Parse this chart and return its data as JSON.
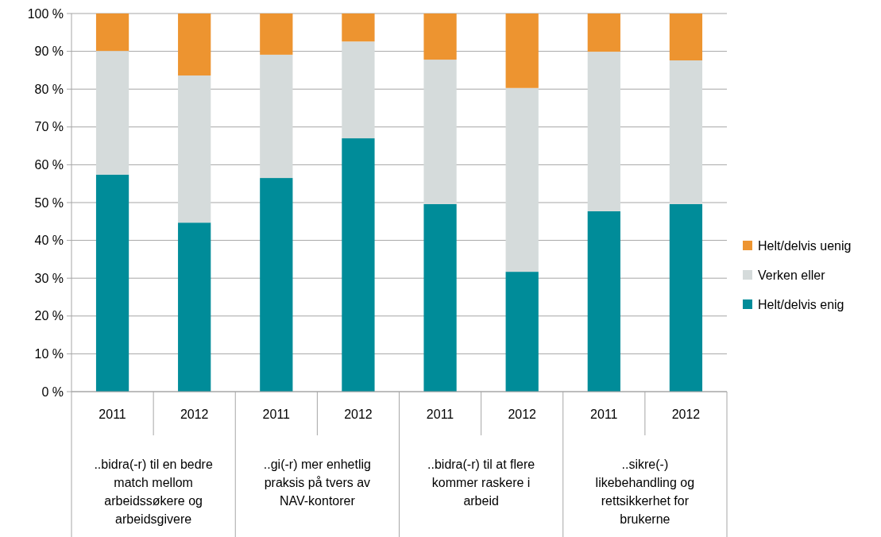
{
  "chart_data": {
    "type": "bar",
    "stacked": true,
    "categories": [
      "2011",
      "2012",
      "2011",
      "2012",
      "2011",
      "2012",
      "2011",
      "2012"
    ],
    "series": [
      {
        "name": "Helt/delvis enig",
        "color": "#008c99",
        "values": [
          57.4,
          44.7,
          56.5,
          67.0,
          49.6,
          31.7,
          47.7,
          49.6
        ]
      },
      {
        "name": "Verken eller",
        "color": "#d5dbdb",
        "values": [
          32.7,
          38.9,
          32.6,
          25.6,
          38.2,
          48.6,
          42.2,
          38.0
        ]
      },
      {
        "name": "Helt/delvis uenig",
        "color": "#ed9430",
        "values": [
          9.9,
          16.4,
          10.9,
          7.4,
          12.2,
          19.7,
          10.1,
          12.4
        ]
      }
    ],
    "ylim": [
      0,
      100
    ],
    "yticks": [
      {
        "value": 0,
        "label": "0 %"
      },
      {
        "value": 10,
        "label": "10 %"
      },
      {
        "value": 20,
        "label": "20 %"
      },
      {
        "value": 30,
        "label": "30 %"
      },
      {
        "value": 40,
        "label": "40 %"
      },
      {
        "value": 50,
        "label": "50 %"
      },
      {
        "value": 60,
        "label": "60 %"
      },
      {
        "value": 70,
        "label": "70 %"
      },
      {
        "value": 80,
        "label": "80 %"
      },
      {
        "value": 90,
        "label": "90 %"
      },
      {
        "value": 100,
        "label": "100 %"
      }
    ],
    "grid": "y",
    "legend": "right",
    "annotations": [
      "..bidra(-r) til en bedre\nmatch mellom\narbeidssøkere og\narbeidsgivere",
      "..gi(-r) mer enhetlig\npraksis på tvers av\nNAV-kontorer",
      "..bidra(-r) til at flere\nkommer raskere i\narbeid",
      "..sikre(-)\nlikebehandling og\nrettsikkerhet for\nbrukerne"
    ]
  }
}
